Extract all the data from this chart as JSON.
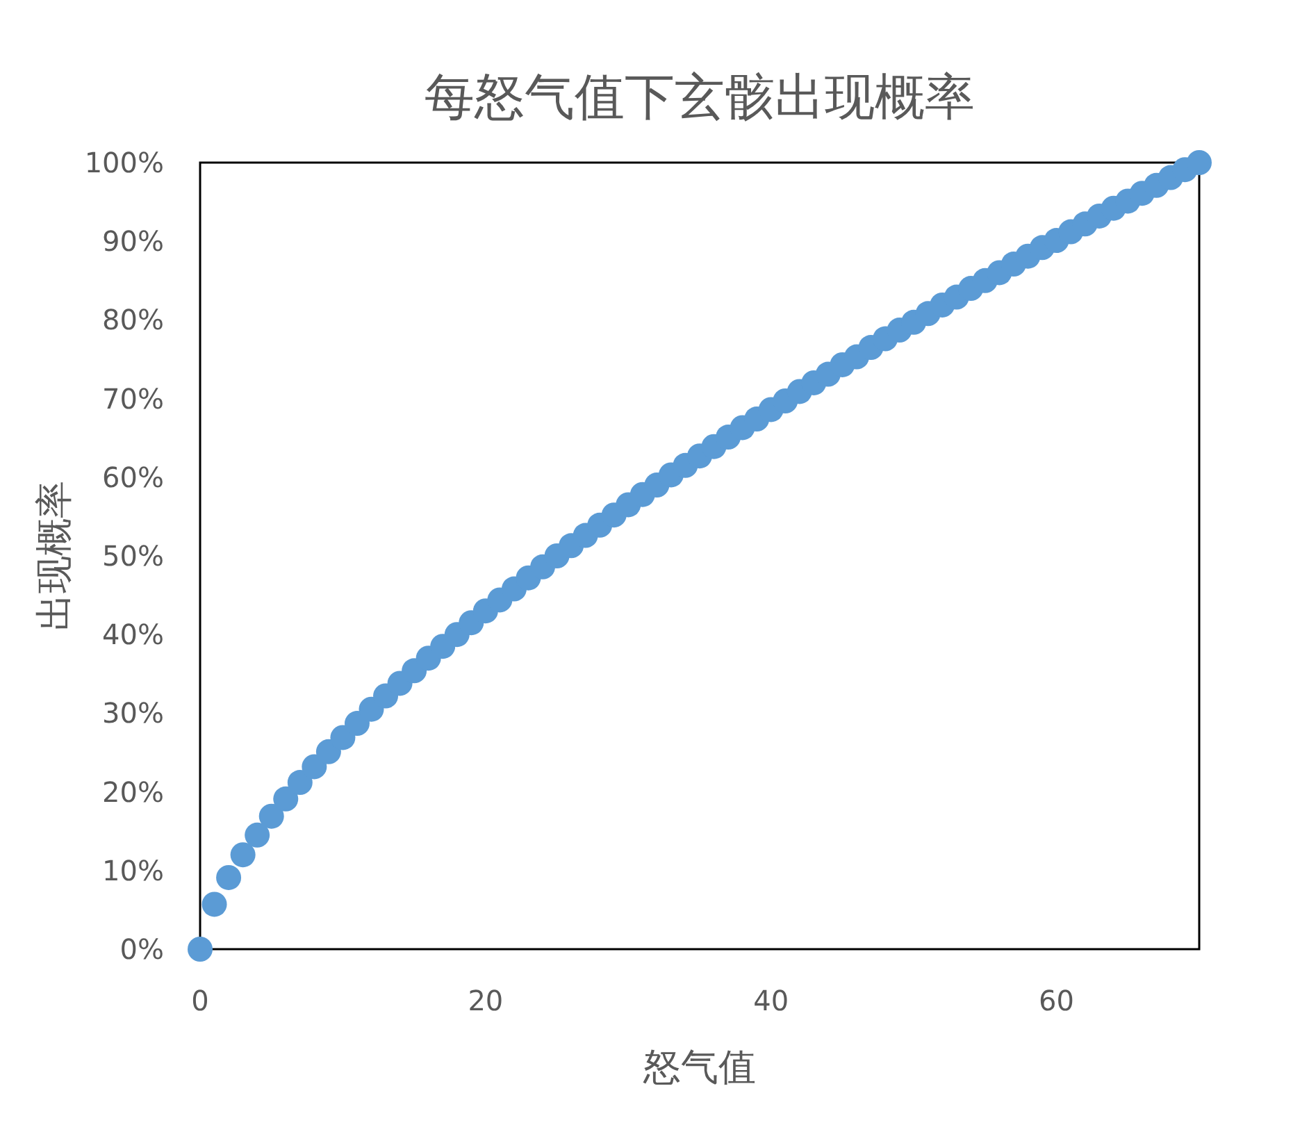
{
  "chart_data": {
    "type": "scatter",
    "title": "每怒气值下玄骸出现概率",
    "xlabel": "怒气值",
    "ylabel": "出现概率",
    "marker": "circle",
    "color": "#5b9bd5",
    "x": [
      0,
      1,
      2,
      3,
      4,
      5,
      6,
      7,
      8,
      9,
      10,
      11,
      12,
      13,
      14,
      15,
      16,
      17,
      18,
      19,
      20,
      21,
      22,
      23,
      24,
      25,
      26,
      27,
      28,
      29,
      30,
      31,
      32,
      33,
      34,
      35,
      36,
      37,
      38,
      39,
      40,
      41,
      42,
      43,
      44,
      45,
      46,
      47,
      48,
      49,
      50,
      51,
      52,
      53,
      54,
      55,
      56,
      57,
      58,
      59,
      60,
      61,
      62,
      63,
      64,
      65,
      66,
      67,
      68,
      69,
      70
    ],
    "values": [
      0,
      5.7,
      9.1,
      12.0,
      14.5,
      16.9,
      19.1,
      21.2,
      23.2,
      25.1,
      26.9,
      28.7,
      30.5,
      32.2,
      33.8,
      35.4,
      37.0,
      38.5,
      40.0,
      41.5,
      43.0,
      44.4,
      45.8,
      47.2,
      48.6,
      50.0,
      51.3,
      52.6,
      53.9,
      55.2,
      56.5,
      57.8,
      59.0,
      60.3,
      61.5,
      62.7,
      63.9,
      65.1,
      66.3,
      67.4,
      68.6,
      69.7,
      70.9,
      72.0,
      73.1,
      74.3,
      75.3,
      76.5,
      77.6,
      78.7,
      79.7,
      80.8,
      81.9,
      82.9,
      84.0,
      85.0,
      86.0,
      87.1,
      88.1,
      89.2,
      90.1,
      91.2,
      92.2,
      93.2,
      94.2,
      95.1,
      96.1,
      97.1,
      98.1,
      99.1,
      100
    ],
    "xlim": [
      0,
      70
    ],
    "xticks": [
      0,
      20,
      40,
      60
    ],
    "ylim": [
      0,
      100
    ],
    "yticks": [
      {
        "value": 0,
        "label": "0%"
      },
      {
        "value": 10,
        "label": "10%"
      },
      {
        "value": 20,
        "label": "20%"
      },
      {
        "value": 30,
        "label": "30%"
      },
      {
        "value": 40,
        "label": "40%"
      },
      {
        "value": 50,
        "label": "50%"
      },
      {
        "value": 60,
        "label": "60%"
      },
      {
        "value": 70,
        "label": "70%"
      },
      {
        "value": 80,
        "label": "80%"
      },
      {
        "value": 90,
        "label": "90%"
      },
      {
        "value": 100,
        "label": "100%"
      }
    ]
  }
}
